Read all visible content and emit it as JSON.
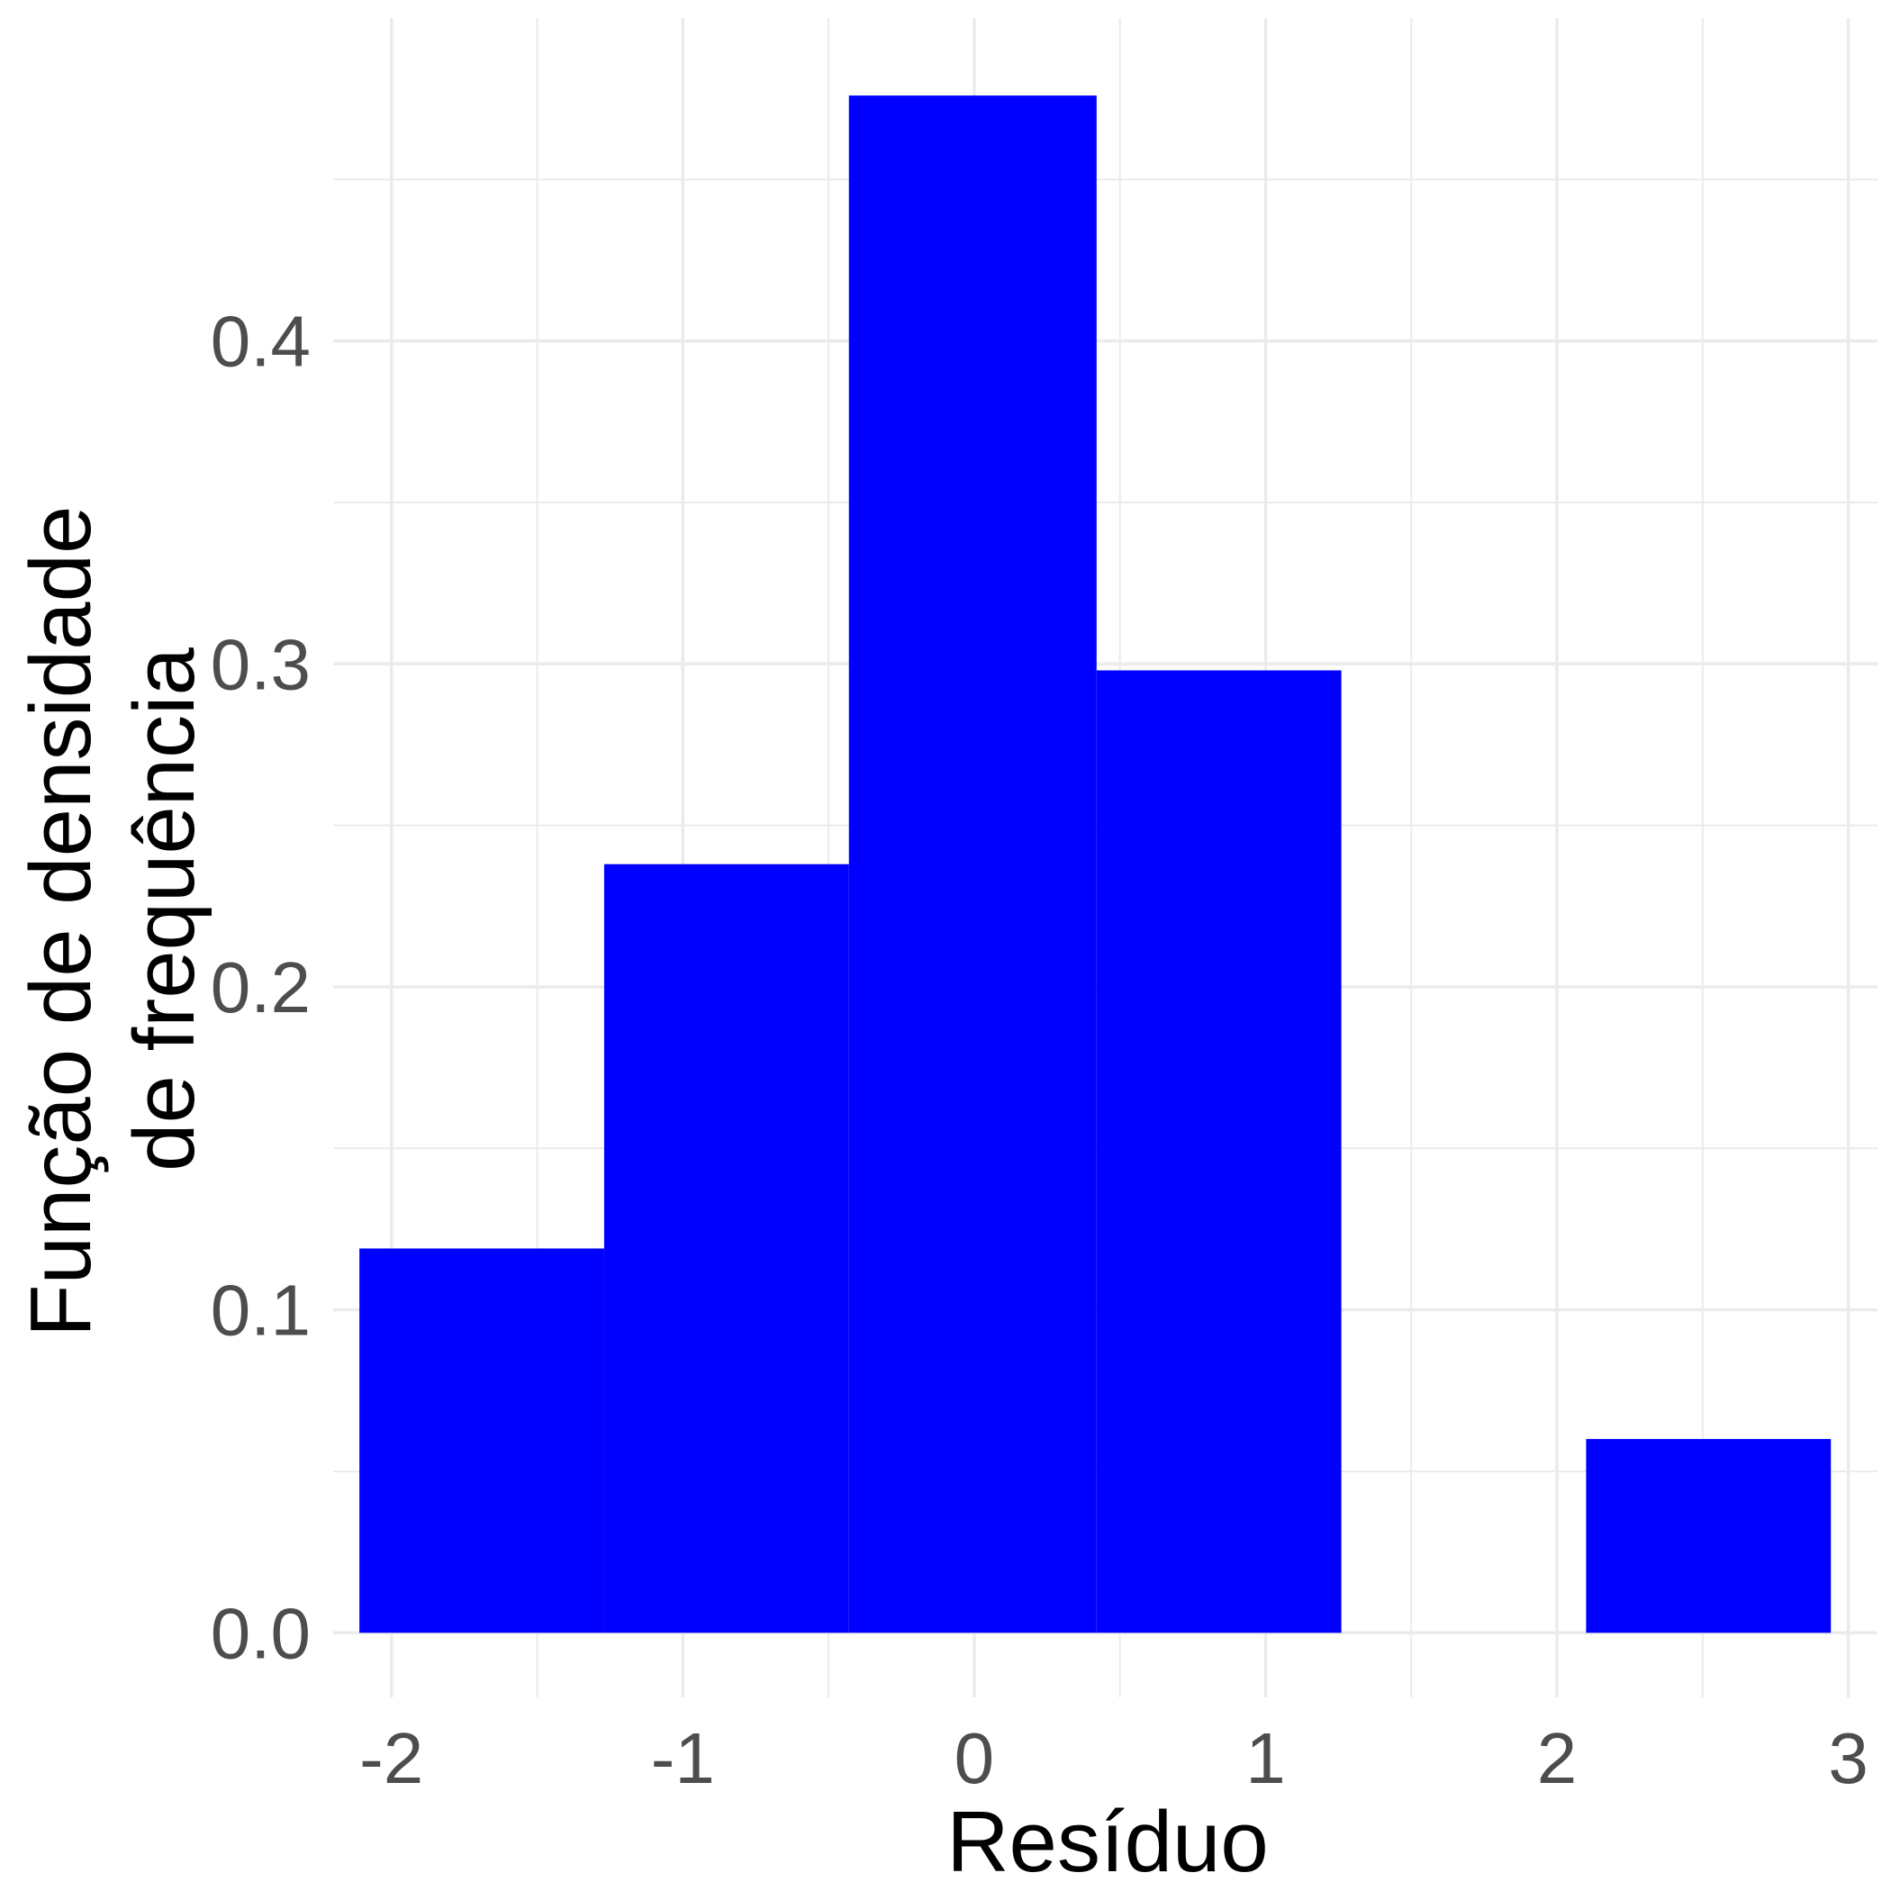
{
  "chart_data": {
    "type": "bar",
    "subtype": "histogram",
    "xlabel": "Resíduo",
    "ylabel": [
      "Função de densidade",
      "de frequência"
    ],
    "xlim": [
      -2.2,
      3.1
    ],
    "ylim": [
      -0.02,
      0.5
    ],
    "x_ticks": [
      -2,
      -1,
      0,
      1,
      2,
      3
    ],
    "x_tick_labels": [
      "-2",
      "-1",
      "0",
      "1",
      "2",
      "3"
    ],
    "y_ticks": [
      0.0,
      0.1,
      0.2,
      0.3,
      0.4
    ],
    "y_tick_labels": [
      "0.0",
      "0.1",
      "0.2",
      "0.3",
      "0.4"
    ],
    "x_minor": [
      -1.5,
      -0.5,
      0.5,
      1.5,
      2.5
    ],
    "y_minor": [
      0.05,
      0.15,
      0.25,
      0.35,
      0.45
    ],
    "grid": true,
    "legend": "none",
    "bins": [
      {
        "x0": -2.11,
        "x1": -1.27,
        "density": 0.119
      },
      {
        "x0": -1.27,
        "x1": -0.43,
        "density": 0.238
      },
      {
        "x0": -0.43,
        "x1": 0.42,
        "density": 0.476
      },
      {
        "x0": 0.42,
        "x1": 1.26,
        "density": 0.298
      },
      {
        "x0": 1.26,
        "x1": 2.1,
        "density": 0.0
      },
      {
        "x0": 2.1,
        "x1": 2.94,
        "density": 0.06
      }
    ],
    "bar_color": "#0000ff",
    "grid_color": "#ebebeb"
  }
}
